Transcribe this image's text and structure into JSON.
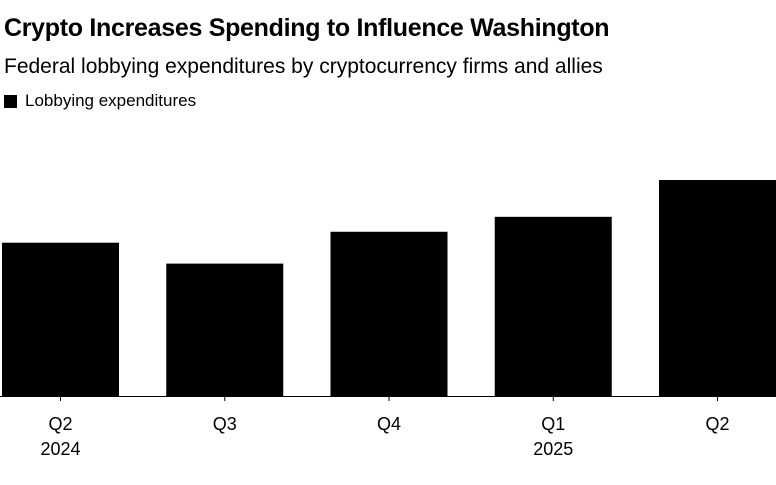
{
  "title": "Crypto Increases Spending to Influence Washington",
  "subtitle": "Federal lobbying expenditures by cryptocurrency firms and allies",
  "colors": {
    "bar": "#000000",
    "axis": "#000000",
    "background": "#ffffff"
  },
  "chart_data": {
    "type": "bar",
    "title": "Crypto Increases Spending to Influence Washington",
    "subtitle": "Federal lobbying expenditures by cryptocurrency firms and allies",
    "legend": {
      "entries": [
        "Lobbying expenditures"
      ],
      "placement": "top-left"
    },
    "categories": [
      "Q2",
      "Q3",
      "Q4",
      "Q1",
      "Q2"
    ],
    "year_labels": [
      "2024",
      "",
      "",
      "2025",
      ""
    ],
    "series": [
      {
        "name": "Lobbying expenditures",
        "values": [
          154,
          133,
          165,
          180,
          217
        ]
      }
    ],
    "xlabel": "",
    "ylabel": "",
    "ylim": [
      0,
      217
    ],
    "y_axis_shown": false,
    "grid": false
  }
}
